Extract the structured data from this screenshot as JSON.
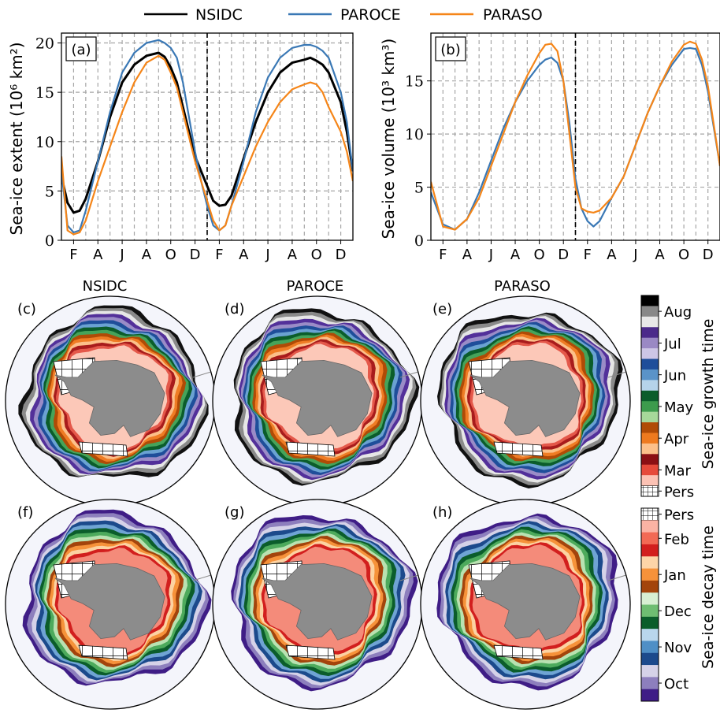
{
  "legend": [
    {
      "label": "NSIDC",
      "color": "#000000"
    },
    {
      "label": "PAROCE",
      "color": "#3a78b5"
    },
    {
      "label": "PARASO",
      "color": "#f58518"
    }
  ],
  "months": {
    "x_ticks": [
      "F",
      "A",
      "J",
      "A",
      "O",
      "D",
      "F",
      "A",
      "J",
      "A",
      "O",
      "D"
    ]
  },
  "chart_data": [
    {
      "id": "a",
      "type": "line",
      "panel_label": "(a)",
      "ylabel": "Sea-ice extent (10⁶ km²)",
      "ylim": [
        0,
        21
      ],
      "yticks": [
        "0",
        "5",
        "10",
        "15",
        "20"
      ],
      "xlim": [
        0,
        24
      ],
      "grid": true,
      "series": [
        {
          "name": "NSIDC",
          "x": [
            0,
            0.5,
            1,
            1.5,
            2,
            3,
            4,
            5,
            6,
            7,
            8,
            8.5,
            9,
            9.5,
            10,
            11,
            11.5,
            12,
            12.5,
            13,
            13.5,
            14,
            15,
            16,
            17,
            18,
            19,
            20,
            20.5,
            21,
            21.5,
            22,
            23,
            23.5,
            24
          ],
          "y": [
            6.5,
            3.8,
            2.8,
            3.0,
            4.2,
            8.0,
            12.5,
            16.0,
            17.8,
            18.7,
            19.0,
            18.6,
            17.5,
            16.0,
            13.5,
            8.5,
            7.0,
            5.5,
            4.0,
            3.5,
            3.6,
            4.5,
            8.3,
            12.0,
            15.0,
            17.0,
            18.0,
            18.3,
            18.5,
            18.2,
            17.8,
            17.0,
            14.0,
            11.0,
            7.0
          ]
        },
        {
          "name": "PAROCE",
          "x": [
            0,
            0.5,
            1,
            1.5,
            2,
            3,
            4,
            5,
            6,
            7,
            8,
            8.5,
            9,
            9.5,
            10,
            11,
            11.5,
            12,
            12.5,
            13,
            13.5,
            14,
            15,
            16,
            17,
            18,
            19,
            20,
            20.5,
            21,
            21.5,
            22,
            23,
            23.5,
            24
          ],
          "y": [
            7.0,
            1.5,
            0.8,
            1.0,
            3.0,
            8.0,
            13.0,
            17.0,
            19.0,
            20.0,
            20.3,
            20.0,
            19.5,
            18.5,
            16.0,
            9.0,
            6.0,
            3.5,
            1.5,
            1.0,
            1.5,
            3.5,
            8.0,
            13.0,
            16.5,
            18.5,
            19.5,
            19.8,
            19.8,
            19.6,
            19.2,
            18.5,
            15.0,
            12.0,
            7.0
          ]
        },
        {
          "name": "PARASO",
          "x": [
            0,
            0.5,
            1,
            1.5,
            2,
            3,
            4,
            5,
            6,
            7,
            8,
            8.5,
            9,
            9.5,
            10,
            11,
            11.5,
            12,
            12.5,
            13,
            13.5,
            14,
            15,
            16,
            17,
            18,
            19,
            20,
            20.5,
            21,
            21.5,
            22,
            23,
            23.5,
            24
          ],
          "y": [
            8.5,
            1.0,
            0.6,
            0.8,
            2.0,
            6.0,
            9.5,
            13.0,
            16.0,
            18.0,
            18.7,
            18.3,
            17.0,
            15.5,
            13.0,
            8.0,
            6.0,
            4.0,
            2.0,
            1.0,
            1.5,
            3.5,
            6.5,
            9.5,
            12.0,
            14.0,
            15.3,
            15.8,
            16.0,
            15.8,
            15.0,
            13.5,
            11.0,
            9.0,
            6.0
          ]
        }
      ]
    },
    {
      "id": "b",
      "type": "line",
      "panel_label": "(b)",
      "ylabel": "Sea-ice volume (10³ km³)",
      "ylim": [
        0,
        19.5
      ],
      "yticks": [
        "0",
        "5",
        "10",
        "15"
      ],
      "xlim": [
        0,
        24
      ],
      "grid": true,
      "series": [
        {
          "name": "PAROCE",
          "x": [
            0,
            1,
            2,
            3,
            4,
            5,
            6,
            7,
            8,
            9,
            9.5,
            10,
            10.5,
            11,
            11.5,
            12,
            12.5,
            13,
            13.5,
            14,
            15,
            16,
            17,
            18,
            19,
            20,
            21,
            21.5,
            22,
            22.5,
            23,
            24
          ],
          "y": [
            4.5,
            1.5,
            1.0,
            2.0,
            4.5,
            7.5,
            10.5,
            13.0,
            15.0,
            16.5,
            17.0,
            17.2,
            16.7,
            15.0,
            11.0,
            5.8,
            3.0,
            1.8,
            1.3,
            1.8,
            4.0,
            6.0,
            9.0,
            12.0,
            14.5,
            16.5,
            18.0,
            18.1,
            18.0,
            16.5,
            14.0,
            7.0
          ]
        },
        {
          "name": "PARASO",
          "x": [
            0,
            1,
            2,
            3,
            4,
            5,
            6,
            7,
            8,
            9,
            9.5,
            10,
            10.5,
            11,
            11.5,
            12,
            12.5,
            13,
            13.5,
            14,
            15,
            16,
            17,
            18,
            19,
            20,
            21,
            21.5,
            22,
            22.5,
            23,
            24
          ],
          "y": [
            5.5,
            1.3,
            1.0,
            2.0,
            4.0,
            7.0,
            10.0,
            13.0,
            15.5,
            17.6,
            18.4,
            18.5,
            17.8,
            15.0,
            10.0,
            5.0,
            3.0,
            2.7,
            2.6,
            2.8,
            4.0,
            6.0,
            9.0,
            12.0,
            14.5,
            16.8,
            18.4,
            18.7,
            18.5,
            17.0,
            14.5,
            7.0
          ]
        }
      ]
    }
  ],
  "maps": {
    "columns": [
      "NSIDC",
      "PAROCE",
      "PARASO"
    ],
    "growth_panels": [
      "(c)",
      "(d)",
      "(e)"
    ],
    "decay_panels": [
      "(f)",
      "(g)",
      "(h)"
    ]
  },
  "colorbar_growth": {
    "label": "Sea-ice growth time",
    "ticks": [
      "Aug",
      "Jul",
      "Jun",
      "May",
      "Apr",
      "Mar",
      "Pers"
    ],
    "colors": [
      "#000000",
      "#888888",
      "#e8e8e8",
      "#4b2a8a",
      "#9a89c4",
      "#cdc6e6",
      "#1f4e9a",
      "#5a93c8",
      "#b6d3ea",
      "#0b5d2b",
      "#3d9b4d",
      "#a6d89a",
      "#b04b06",
      "#ee7a1f",
      "#fcc08a",
      "#8b0f14",
      "#e64a3b",
      "#fcc2b4"
    ]
  },
  "colorbar_decay": {
    "label": "Sea-ice decay time",
    "ticks": [
      "Pers",
      "Feb",
      "Jan",
      "Dec",
      "Nov",
      "Oct"
    ],
    "colors": [
      "#fbb3a4",
      "#f26a55",
      "#d21f1e",
      "#fdd5a8",
      "#f6923a",
      "#a3440c",
      "#d8efd3",
      "#6fbd72",
      "#0b5d2b",
      "#b9d6ec",
      "#4f8fc6",
      "#1c4a8c",
      "#d5d2e8",
      "#8d7fbd",
      "#3f1d86"
    ]
  }
}
